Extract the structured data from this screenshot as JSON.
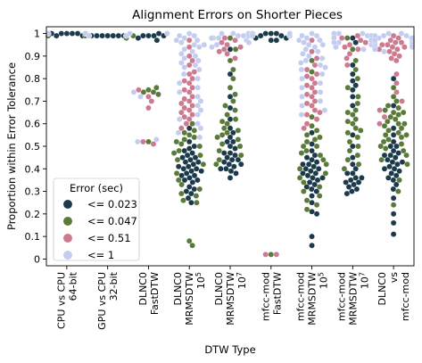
{
  "chart_data": {
    "type": "scatter",
    "subtype": "swarm",
    "title": "Alignment Errors on Shorter Pieces",
    "xlabel": "DTW Type",
    "ylabel": "Proportion within Error Tolerance",
    "ylim": [
      -0.03,
      1.03
    ],
    "yticks": [
      "0",
      "0.1",
      "0.2",
      "0.3",
      "0.4",
      "0.5",
      "0.6",
      "0.7",
      "0.8",
      "0.9",
      "1"
    ],
    "grid": false,
    "legend_position": "lower-left",
    "legend_title": "Error (sec)",
    "categories": [
      {
        "lines": [
          "CPU vs CPU",
          "64-bit"
        ]
      },
      {
        "lines": [
          "GPU vs CPU",
          "32-bit"
        ]
      },
      {
        "lines": [
          "DLNC0",
          "FastDTW"
        ]
      },
      {
        "lines": [
          "DLNC0",
          "MRMSDTW",
          "10^5"
        ]
      },
      {
        "lines": [
          "DLNC0",
          "MRMSDTW",
          "10^7"
        ]
      },
      {
        "lines": [
          "mfcc-mod",
          "FastDTW"
        ]
      },
      {
        "lines": [
          "mfcc-mod",
          "MRMSDTW",
          "10^5"
        ]
      },
      {
        "lines": [
          "mfcc-mod",
          "MRMSDTW",
          "10^7"
        ]
      },
      {
        "lines": [
          "DLNC0",
          "vs",
          "mfcc-mod"
        ]
      }
    ],
    "series": [
      {
        "name": "<= 0.023",
        "color": "#1b3a4b",
        "values": [
          [
            1,
            1,
            1,
            1,
            0.99,
            1,
            0.99,
            1,
            1,
            0.99,
            1,
            1,
            0.99,
            0.99
          ],
          [
            0.99,
            0.99,
            0.99,
            0.99,
            0.99,
            0.99,
            0.99,
            0.99,
            0.99,
            0.99
          ],
          [
            0.99,
            0.99,
            0.99,
            1,
            0.98,
            0.99,
            0.97
          ],
          [
            0.58,
            0.52,
            0.49,
            0.47,
            0.46,
            0.45,
            0.44,
            0.43,
            0.42,
            0.41,
            0.4,
            0.4,
            0.39,
            0.38,
            0.37,
            0.36,
            0.35,
            0.34,
            0.32,
            0.31,
            0.3,
            0.29,
            0.27,
            0.25,
            0.45,
            0.43,
            0.41,
            0.39,
            0.37,
            0.35,
            0.5,
            0.48
          ],
          [
            0.93,
            0.82,
            0.72,
            0.67,
            0.62,
            0.58,
            0.56,
            0.54,
            0.52,
            0.5,
            0.49,
            0.47,
            0.46,
            0.45,
            0.44,
            0.43,
            0.42,
            0.41,
            0.4,
            0.39,
            0.38,
            0.36,
            0.52,
            0.47,
            0.44,
            0.42,
            0.4
          ],
          [
            1,
            1,
            1,
            0.99,
            0.99,
            0.98,
            0.98,
            0.97,
            0.97,
            0.99,
            1,
            0.99
          ],
          [
            0.56,
            0.51,
            0.48,
            0.46,
            0.44,
            0.43,
            0.42,
            0.41,
            0.4,
            0.39,
            0.38,
            0.37,
            0.36,
            0.35,
            0.34,
            0.33,
            0.32,
            0.31,
            0.3,
            0.28,
            0.25,
            0.21,
            0.2,
            0.1,
            0.06,
            0.45,
            0.42,
            0.4,
            0.38,
            0.36
          ],
          [
            0.98,
            0.96,
            0.86,
            0.82,
            0.79,
            0.77,
            0.75,
            0.72,
            0.68,
            0.55,
            0.5,
            0.45,
            0.42,
            0.4,
            0.38,
            0.36,
            0.35,
            0.34,
            0.33,
            0.32,
            0.31,
            0.3,
            0.29,
            0.34,
            0.36,
            0.38
          ],
          [
            0.8,
            0.68,
            0.58,
            0.55,
            0.52,
            0.5,
            0.48,
            0.47,
            0.46,
            0.45,
            0.44,
            0.43,
            0.42,
            0.41,
            0.4,
            0.39,
            0.38,
            0.37,
            0.35,
            0.33,
            0.31,
            0.27,
            0.2,
            0.16,
            0.11,
            0.5,
            0.46,
            0.43,
            0.4,
            0.36
          ]
        ]
      },
      {
        "name": "<= 0.047",
        "color": "#5a7a3a",
        "values": [
          [
            1,
            1,
            1,
            0.99,
            1,
            0.99,
            1,
            1,
            0.99,
            1
          ],
          [
            0.99,
            0.99,
            0.99,
            0.99,
            0.99,
            0.98,
            0.99,
            0.99
          ],
          [
            0.99,
            0.75,
            0.74,
            0.74,
            0.73,
            0.52,
            0.76
          ],
          [
            0.6,
            0.57,
            0.55,
            0.54,
            0.53,
            0.51,
            0.5,
            0.48,
            0.46,
            0.44,
            0.42,
            0.38,
            0.35,
            0.33,
            0.31,
            0.29,
            0.28,
            0.26,
            0.25,
            0.08,
            0.06,
            0.56,
            0.52,
            0.47
          ],
          [
            0.98,
            0.93,
            0.88,
            0.84,
            0.8,
            0.76,
            0.73,
            0.7,
            0.68,
            0.66,
            0.64,
            0.62,
            0.6,
            0.58,
            0.56,
            0.55,
            0.53,
            0.51,
            0.5,
            0.48,
            0.46,
            0.44,
            0.42,
            0.61,
            0.57,
            0.54
          ],
          [
            1,
            1,
            0.99,
            0.99,
            0.02
          ],
          [
            0.88,
            0.83,
            0.63,
            0.59,
            0.57,
            0.55,
            0.53,
            0.52,
            0.5,
            0.48,
            0.46,
            0.44,
            0.42,
            0.4,
            0.38,
            0.36,
            0.34,
            0.32,
            0.3,
            0.28,
            0.26,
            0.24,
            0.22,
            0.54,
            0.5,
            0.47
          ],
          [
            0.98,
            0.93,
            0.88,
            0.84,
            0.8,
            0.76,
            0.72,
            0.69,
            0.66,
            0.64,
            0.62,
            0.6,
            0.58,
            0.56,
            0.54,
            0.52,
            0.5,
            0.48,
            0.46,
            0.44,
            0.42,
            0.4,
            0.65,
            0.61,
            0.57
          ],
          [
            0.76,
            0.72,
            0.7,
            0.68,
            0.67,
            0.66,
            0.65,
            0.64,
            0.63,
            0.62,
            0.61,
            0.6,
            0.59,
            0.58,
            0.57,
            0.56,
            0.55,
            0.54,
            0.53,
            0.52,
            0.51,
            0.5,
            0.49,
            0.48,
            0.46,
            0.44,
            0.42,
            0.35,
            0.3,
            0.24,
            0.65,
            0.6,
            0.55
          ]
        ]
      },
      {
        "name": "<= 0.51",
        "color": "#cc7a8f",
        "values": [
          [
            1,
            1,
            1,
            1,
            1
          ],
          [
            0.99,
            0.99,
            0.99,
            0.99
          ],
          [
            0.75,
            0.72,
            0.7,
            0.67,
            0.51,
            0.52
          ],
          [
            0.97,
            0.94,
            0.9,
            0.86,
            0.82,
            0.8,
            0.78,
            0.76,
            0.74,
            0.72,
            0.7,
            0.68,
            0.66,
            0.64,
            0.62,
            0.6,
            0.58,
            0.83,
            0.79,
            0.75,
            0.71,
            0.67,
            0.63,
            0.88,
            0.69,
            0.65
          ],
          [
            0.97,
            0.95,
            0.93,
            0.91,
            0.89,
            0.98,
            0.96,
            0.94,
            0.92
          ],
          [
            1,
            1,
            0.99,
            0.02,
            0.02
          ],
          [
            0.97,
            0.92,
            0.89,
            0.86,
            0.84,
            0.82,
            0.8,
            0.78,
            0.76,
            0.74,
            0.72,
            0.7,
            0.68,
            0.66,
            0.64,
            0.62,
            0.6,
            0.58,
            0.81,
            0.77,
            0.73,
            0.69,
            0.65
          ],
          [
            0.99,
            0.97,
            0.95,
            0.93,
            0.91,
            0.89,
            0.86,
            0.98,
            0.96,
            0.94
          ],
          [
            0.99,
            0.98,
            0.97,
            0.96,
            0.95,
            0.94,
            0.93,
            0.92,
            0.91,
            0.9,
            0.89,
            0.88,
            0.82,
            0.78,
            0.74,
            0.7,
            0.66,
            0.63,
            0.6,
            0.96,
            0.95,
            0.94,
            0.93
          ]
        ]
      },
      {
        "name": "<= 1",
        "color": "#c4cdf0",
        "values": [
          [
            1,
            1,
            1,
            1
          ],
          [
            0.99,
            0.99,
            0.99
          ],
          [
            1,
            1,
            0.74,
            0.72,
            0.53,
            0.52
          ],
          [
            1,
            0.99,
            0.98,
            0.97,
            0.96,
            0.95,
            0.94,
            0.93,
            0.92,
            0.91,
            0.9,
            0.89,
            0.88,
            0.87,
            0.86,
            0.85,
            0.84,
            0.82,
            0.8,
            0.78,
            0.76,
            0.74,
            0.72,
            0.7,
            0.68,
            0.66,
            0.64,
            0.62,
            0.6,
            0.58,
            0.56,
            0.54,
            0.99,
            0.97,
            0.95
          ],
          [
            1,
            1,
            0.99,
            0.99,
            0.98,
            0.98,
            0.97,
            0.96,
            0.95,
            0.94,
            1,
            0.99,
            0.98
          ],
          [
            1,
            1,
            1,
            0.99,
            0.99,
            1
          ],
          [
            1,
            0.99,
            0.98,
            0.97,
            0.96,
            0.95,
            0.94,
            0.93,
            0.92,
            0.91,
            0.9,
            0.89,
            0.88,
            0.87,
            0.86,
            0.85,
            0.84,
            0.82,
            0.8,
            0.78,
            0.76,
            0.74,
            0.72,
            0.7,
            0.68,
            0.66,
            0.64,
            0.99,
            0.97,
            0.95
          ],
          [
            1,
            1,
            0.99,
            0.99,
            0.98,
            0.98,
            0.97,
            0.96,
            0.95,
            0.94,
            0.93,
            1,
            0.99,
            0.98,
            0.97,
            0.96
          ],
          [
            1,
            1,
            0.99,
            0.99,
            0.98,
            0.98,
            0.97,
            0.97,
            0.96,
            0.96,
            0.95,
            0.95,
            0.94,
            0.94,
            0.93,
            0.92,
            0.99,
            0.98,
            0.97
          ]
        ]
      }
    ]
  }
}
